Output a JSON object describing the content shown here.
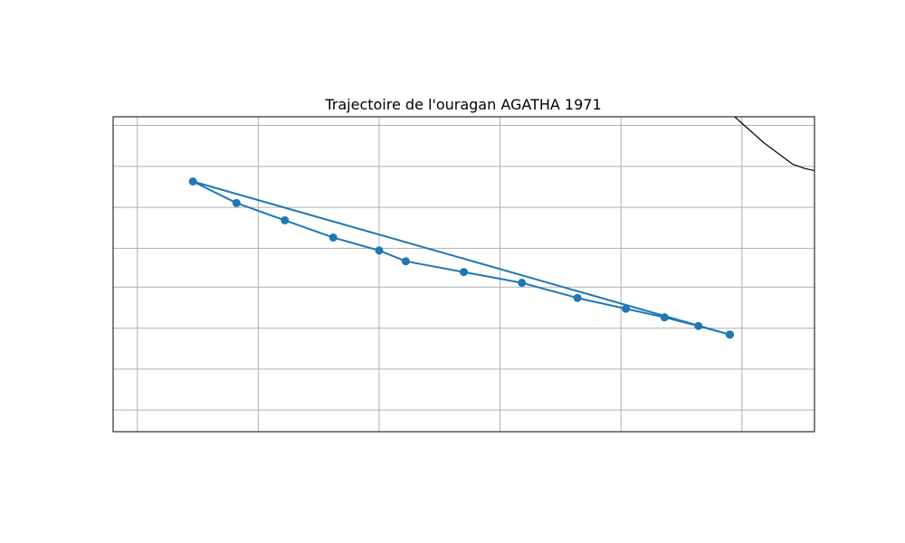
{
  "chart_data": {
    "type": "line",
    "title": "Trajectoire de l'ouragan AGATHA 1971",
    "xlabel": "",
    "ylabel": "",
    "grid": true,
    "legend": false,
    "xlim": [
      -110.2,
      -81.2
    ],
    "ylim": [
      6.2,
      20.8
    ],
    "x_gridlines": [
      -109.2,
      -104.2,
      -99.2,
      -94.2,
      -89.2,
      -84.2
    ],
    "y_gridlines": [
      7.2,
      9.1,
      11.0,
      12.9,
      14.7,
      16.6,
      18.5,
      20.4
    ],
    "coastline": [
      {
        "lon": -84.5,
        "lat": 20.8
      },
      {
        "lon": -83.3,
        "lat": 19.6
      },
      {
        "lon": -82.1,
        "lat": 18.6
      },
      {
        "lon": -81.6,
        "lat": 18.4
      },
      {
        "lon": -81.2,
        "lat": 18.3
      }
    ],
    "series": [
      {
        "color": "#1f77b4",
        "points": [
          {
            "lon": -84.7,
            "lat": 10.7
          },
          {
            "lon": -86.0,
            "lat": 11.1
          },
          {
            "lon": -87.4,
            "lat": 11.5
          },
          {
            "lon": -89.0,
            "lat": 11.9
          },
          {
            "lon": -91.0,
            "lat": 12.4
          },
          {
            "lon": -93.3,
            "lat": 13.1
          },
          {
            "lon": -95.7,
            "lat": 13.6
          },
          {
            "lon": -98.1,
            "lat": 14.1
          },
          {
            "lon": -99.2,
            "lat": 14.6
          },
          {
            "lon": -101.1,
            "lat": 15.2
          },
          {
            "lon": -103.1,
            "lat": 16.0
          },
          {
            "lon": -105.1,
            "lat": 16.8
          },
          {
            "lon": -106.9,
            "lat": 17.8
          },
          {
            "lon": -84.7,
            "lat": 10.7
          }
        ]
      }
    ]
  }
}
